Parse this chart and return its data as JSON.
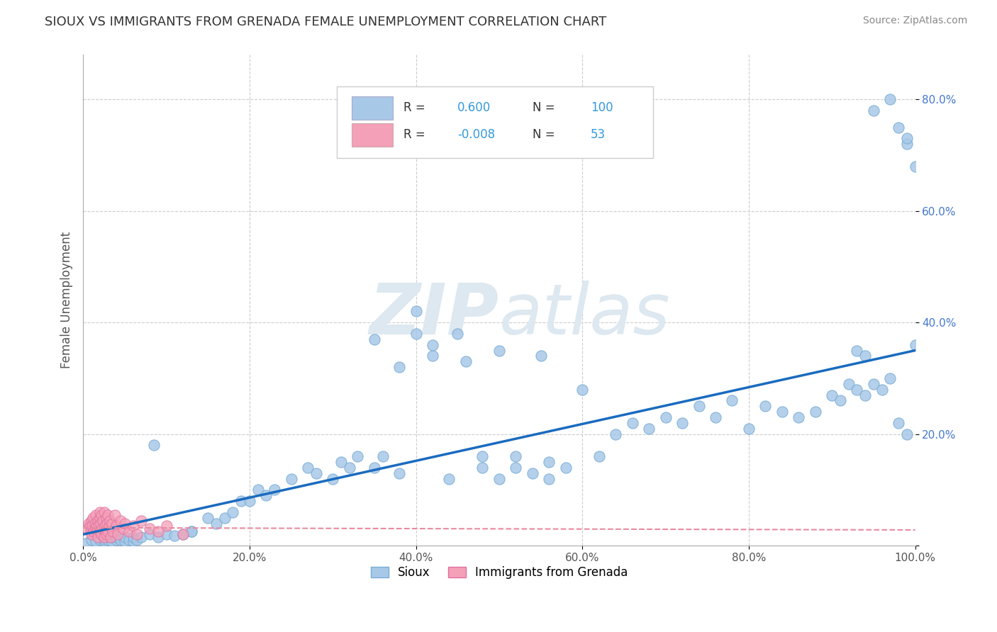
{
  "title": "SIOUX VS IMMIGRANTS FROM GRENADA FEMALE UNEMPLOYMENT CORRELATION CHART",
  "source": "Source: ZipAtlas.com",
  "ylabel": "Female Unemployment",
  "legend_label1": "Sioux",
  "legend_label2": "Immigrants from Grenada",
  "R1": 0.6,
  "N1": 100,
  "R2": -0.008,
  "N2": 53,
  "color_sioux": "#a8c8e8",
  "color_sioux_edge": "#7aadd4",
  "color_grenada": "#f4a0b8",
  "color_grenada_edge": "#e070a0",
  "color_line_sioux": "#1a6bbf",
  "color_line_grenada": "#e88aa0",
  "watermark_color": "#dde8f0",
  "xlim": [
    0.0,
    1.0
  ],
  "ylim": [
    0.0,
    0.88
  ],
  "x_ticks": [
    0.0,
    0.2,
    0.4,
    0.6,
    0.8,
    1.0
  ],
  "x_tick_labels": [
    "0.0%",
    "20.0%",
    "40.0%",
    "60.0%",
    "80.0%",
    "100.0%"
  ],
  "y_ticks": [
    0.0,
    0.2,
    0.4,
    0.6,
    0.8
  ],
  "y_tick_labels": [
    "",
    "20.0%",
    "40.0%",
    "60.0%",
    "80.0%"
  ],
  "sioux_x": [
    0.005,
    0.01,
    0.015,
    0.02,
    0.025,
    0.025,
    0.03,
    0.03,
    0.035,
    0.04,
    0.04,
    0.045,
    0.05,
    0.05,
    0.055,
    0.06,
    0.06,
    0.065,
    0.07,
    0.08,
    0.085,
    0.09,
    0.1,
    0.11,
    0.12,
    0.13,
    0.13,
    0.15,
    0.16,
    0.17,
    0.18,
    0.19,
    0.2,
    0.21,
    0.22,
    0.23,
    0.25,
    0.27,
    0.28,
    0.3,
    0.31,
    0.32,
    0.33,
    0.35,
    0.36,
    0.38,
    0.4,
    0.42,
    0.44,
    0.46,
    0.48,
    0.5,
    0.52,
    0.54,
    0.56,
    0.58,
    0.6,
    0.62,
    0.64,
    0.66,
    0.68,
    0.7,
    0.72,
    0.74,
    0.76,
    0.78,
    0.8,
    0.82,
    0.84,
    0.86,
    0.88,
    0.9,
    0.91,
    0.92,
    0.93,
    0.94,
    0.95,
    0.96,
    0.97,
    0.98,
    0.99,
    1.0,
    0.93,
    0.94,
    0.95,
    0.97,
    0.98,
    0.99,
    1.0,
    0.99,
    0.5,
    0.45,
    0.55,
    0.4,
    0.35,
    0.38,
    0.42,
    0.48,
    0.52,
    0.56
  ],
  "sioux_y": [
    0.005,
    0.01,
    0.008,
    0.01,
    0.008,
    0.012,
    0.01,
    0.015,
    0.008,
    0.01,
    0.015,
    0.01,
    0.008,
    0.015,
    0.01,
    0.008,
    0.015,
    0.01,
    0.015,
    0.02,
    0.18,
    0.015,
    0.02,
    0.018,
    0.02,
    0.025,
    0.025,
    0.05,
    0.04,
    0.05,
    0.06,
    0.08,
    0.08,
    0.1,
    0.09,
    0.1,
    0.12,
    0.14,
    0.13,
    0.12,
    0.15,
    0.14,
    0.16,
    0.14,
    0.16,
    0.13,
    0.38,
    0.34,
    0.12,
    0.33,
    0.16,
    0.12,
    0.14,
    0.13,
    0.15,
    0.14,
    0.28,
    0.16,
    0.2,
    0.22,
    0.21,
    0.23,
    0.22,
    0.25,
    0.23,
    0.26,
    0.21,
    0.25,
    0.24,
    0.23,
    0.24,
    0.27,
    0.26,
    0.29,
    0.28,
    0.27,
    0.29,
    0.28,
    0.3,
    0.22,
    0.2,
    0.36,
    0.35,
    0.34,
    0.78,
    0.8,
    0.75,
    0.72,
    0.68,
    0.73,
    0.35,
    0.38,
    0.34,
    0.42,
    0.37,
    0.32,
    0.36,
    0.14,
    0.16,
    0.12
  ],
  "grenada_x": [
    0.005,
    0.007,
    0.008,
    0.009,
    0.01,
    0.01,
    0.011,
    0.012,
    0.013,
    0.014,
    0.015,
    0.015,
    0.016,
    0.017,
    0.018,
    0.018,
    0.019,
    0.02,
    0.02,
    0.02,
    0.021,
    0.022,
    0.022,
    0.023,
    0.024,
    0.025,
    0.025,
    0.026,
    0.027,
    0.028,
    0.028,
    0.029,
    0.03,
    0.03,
    0.031,
    0.032,
    0.033,
    0.035,
    0.036,
    0.038,
    0.04,
    0.042,
    0.045,
    0.048,
    0.05,
    0.055,
    0.06,
    0.065,
    0.07,
    0.08,
    0.09,
    0.1,
    0.12
  ],
  "grenada_y": [
    0.03,
    0.04,
    0.035,
    0.025,
    0.045,
    0.02,
    0.035,
    0.05,
    0.025,
    0.04,
    0.03,
    0.055,
    0.035,
    0.025,
    0.045,
    0.015,
    0.035,
    0.05,
    0.025,
    0.06,
    0.04,
    0.02,
    0.055,
    0.03,
    0.045,
    0.015,
    0.06,
    0.035,
    0.025,
    0.05,
    0.02,
    0.04,
    0.055,
    0.025,
    0.035,
    0.045,
    0.015,
    0.04,
    0.025,
    0.055,
    0.035,
    0.02,
    0.045,
    0.03,
    0.04,
    0.025,
    0.035,
    0.02,
    0.045,
    0.03,
    0.025,
    0.035,
    0.02
  ],
  "line1_x0": 0.0,
  "line1_y0": 0.02,
  "line1_x1": 1.0,
  "line1_y1": 0.35,
  "line2_x0": 0.0,
  "line2_y0": 0.032,
  "line2_x1": 1.0,
  "line2_y1": 0.028
}
